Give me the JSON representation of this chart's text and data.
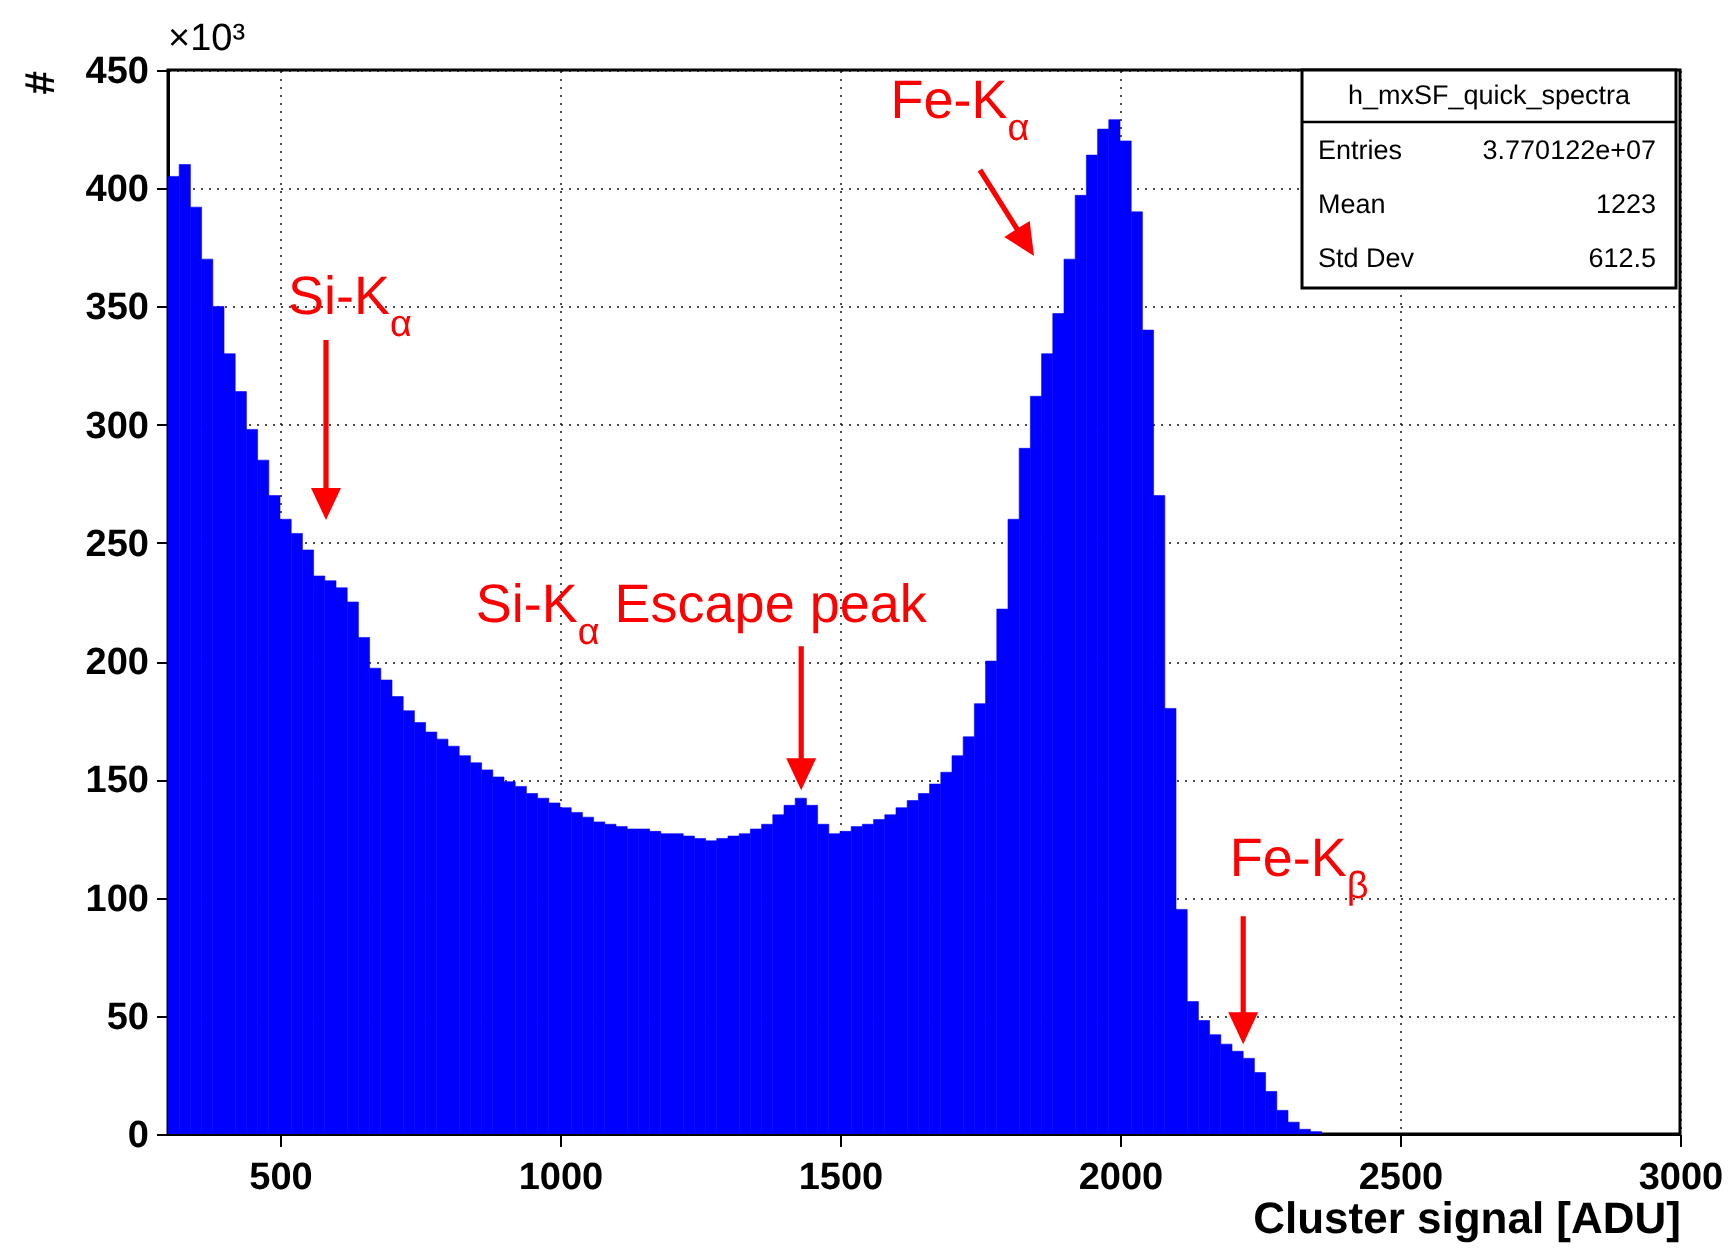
{
  "chart_data": {
    "type": "histogram",
    "xlabel": "Cluster signal [ADU]",
    "ylabel": "#",
    "color": "#0000ff",
    "bins": [
      300,
      320,
      340,
      360,
      380,
      400,
      420,
      440,
      460,
      480,
      500,
      520,
      540,
      560,
      580,
      600,
      620,
      640,
      660,
      680,
      700,
      720,
      740,
      760,
      780,
      800,
      820,
      840,
      860,
      880,
      900,
      920,
      940,
      960,
      980,
      1000,
      1020,
      1040,
      1060,
      1080,
      1100,
      1120,
      1140,
      1160,
      1180,
      1200,
      1220,
      1240,
      1260,
      1280,
      1300,
      1320,
      1340,
      1360,
      1380,
      1400,
      1420,
      1440,
      1460,
      1480,
      1500,
      1520,
      1540,
      1560,
      1580,
      1600,
      1620,
      1640,
      1660,
      1680,
      1700,
      1720,
      1740,
      1760,
      1780,
      1800,
      1820,
      1840,
      1860,
      1880,
      1900,
      1920,
      1940,
      1960,
      1980,
      2000,
      2020,
      2040,
      2060,
      2080,
      2100,
      2120,
      2140,
      2160,
      2180,
      2200,
      2220,
      2240,
      2260,
      2280,
      2300,
      2320,
      2340,
      2360
    ],
    "values": [
      405,
      410,
      392,
      370,
      350,
      330,
      314,
      298,
      285,
      270,
      260,
      254,
      247,
      236,
      234,
      231,
      225,
      210,
      197,
      192,
      185,
      179,
      174,
      170,
      167,
      164,
      160,
      157,
      154,
      151,
      149,
      147,
      144,
      142,
      140,
      138,
      136,
      134,
      132,
      131,
      130,
      129,
      129,
      128,
      127,
      127,
      126,
      125,
      124,
      125,
      126,
      127,
      129,
      131,
      135,
      139,
      142,
      139,
      131,
      127,
      128,
      130,
      131,
      133,
      135,
      138,
      141,
      144,
      148,
      153,
      160,
      168,
      182,
      200,
      222,
      260,
      290,
      312,
      330,
      347,
      370,
      397,
      414,
      425,
      429,
      420,
      390,
      340,
      270,
      180,
      95,
      56,
      48,
      42,
      38,
      35,
      32,
      26,
      18,
      10,
      5,
      2,
      1
    ],
    "xlim": [
      300,
      3000
    ],
    "xticks": [
      500,
      1000,
      1500,
      2000,
      2500,
      3000
    ],
    "ylim": [
      0,
      450
    ],
    "yticks": [
      0,
      50,
      100,
      150,
      200,
      250,
      300,
      350,
      400,
      450
    ],
    "grid": true,
    "annotations": [
      "Si-K$_{α}$",
      "Fe-K$_{α}$",
      {
        "text": "Si-K$_{α}$ Escape peak",
        "x": 1420,
        "y": 142
      },
      {
        "text": "Fe-K$_{β}$",
        "x": 2220,
        "y": 38
      },
      "×10³",
      "h_mxSF_quick_spectra",
      "Entries",
      "3.770122e+07",
      "Mean",
      "1223",
      "Std Dev",
      "612.5"
    ]
  }
}
